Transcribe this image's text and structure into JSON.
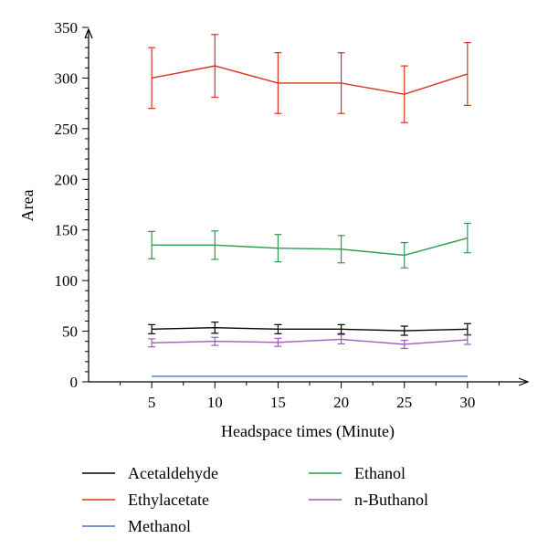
{
  "chart_data": {
    "type": "line",
    "xlabel": "Headspace times (Minute)",
    "ylabel": "Area",
    "x": [
      5,
      10,
      15,
      20,
      25,
      30
    ],
    "xlim": [
      0,
      35
    ],
    "ylim": [
      0,
      350
    ],
    "yticks": [
      0,
      50,
      100,
      150,
      200,
      250,
      300,
      350
    ],
    "xticks": [
      5,
      10,
      15,
      20,
      25,
      30
    ],
    "legend_position": "bottom",
    "series": [
      {
        "name": "Acetaldehyde",
        "color": "#000000",
        "values": [
          52,
          53.5,
          52,
          52,
          50.5,
          52
        ],
        "errors": [
          4.5,
          5.5,
          4.5,
          4.5,
          4.5,
          5.5
        ]
      },
      {
        "name": "Ethylacetate",
        "color": "#d4351c",
        "values": [
          300,
          312,
          295,
          295,
          284,
          304
        ],
        "errors": [
          30,
          31,
          30,
          30,
          28,
          31
        ]
      },
      {
        "name": "Methanol",
        "color": "#4a72c4",
        "values": [
          5.5,
          5.5,
          5.5,
          5.5,
          5.5,
          5.5
        ],
        "errors": [
          0,
          0,
          0,
          0,
          0,
          0
        ]
      },
      {
        "name": "Ethanol",
        "color": "#2e9a4e",
        "values": [
          135,
          135,
          132,
          131,
          125,
          142
        ],
        "errors": [
          13.5,
          14,
          13.5,
          13.5,
          12.5,
          14.5
        ]
      },
      {
        "name": "n-Buthanol",
        "color": "#9b5fb5",
        "values": [
          38.5,
          40,
          39,
          42,
          37,
          41.5
        ],
        "errors": [
          4,
          4,
          4,
          4.5,
          4,
          4.5
        ]
      }
    ]
  }
}
